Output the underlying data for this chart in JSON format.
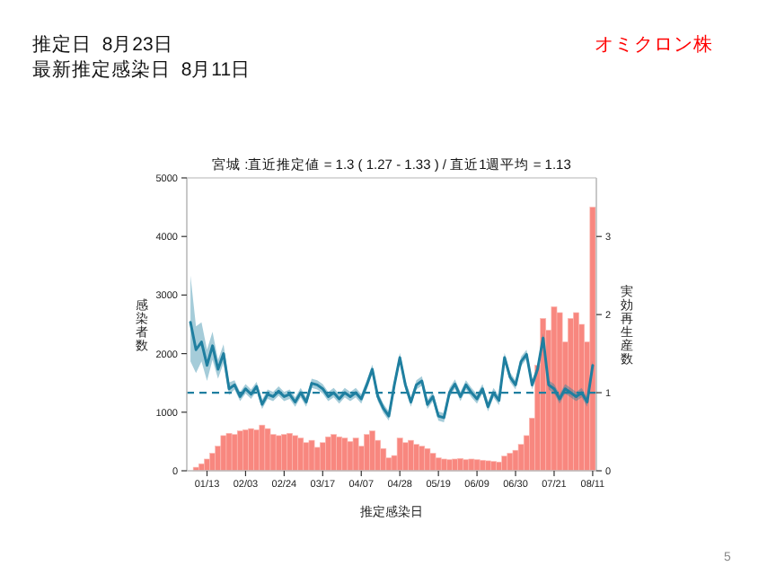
{
  "chart_data": {
    "type": "bar",
    "title": "宮城 :直近推定値 = 1.3 ( 1.27 - 1.33 ) / 直近1週平均 = 1.13",
    "xlabel": "推定感染日",
    "ylabel": "感染者数",
    "y2label": "実効再生産数",
    "annotations": [
      "推定日  8月23日",
      "最新推定感染日  8月11日",
      "オミクロン株",
      "5"
    ],
    "x": [
      "--01-04",
      "--01-07",
      "--01-10",
      "--01-13",
      "--01-16",
      "--01-19",
      "--01-22",
      "--01-25",
      "--01-28",
      "--01-31",
      "--02-03",
      "--02-06",
      "--02-09",
      "--02-12",
      "--02-15",
      "--02-18",
      "--02-21",
      "--02-24",
      "--02-27",
      "--03-02",
      "--03-05",
      "--03-08",
      "--03-11",
      "--03-14",
      "--03-17",
      "--03-20",
      "--03-23",
      "--03-26",
      "--03-29",
      "--04-01",
      "--04-04",
      "--04-07",
      "--04-10",
      "--04-13",
      "--04-16",
      "--04-19",
      "--04-22",
      "--04-25",
      "--04-28",
      "--05-01",
      "--05-04",
      "--05-07",
      "--05-10",
      "--05-13",
      "--05-16",
      "--05-19",
      "--05-22",
      "--05-25",
      "--05-28",
      "--05-31",
      "--06-03",
      "--06-06",
      "--06-09",
      "--06-12",
      "--06-15",
      "--06-18",
      "--06-21",
      "--06-24",
      "--06-27",
      "--06-30",
      "--07-03",
      "--07-06",
      "--07-09",
      "--07-12",
      "--07-15",
      "--07-18",
      "--07-21",
      "--07-24",
      "--07-27",
      "--07-30",
      "--08-02",
      "--08-05",
      "--08-08",
      "--08-11"
    ],
    "xlim": [
      "--01-02",
      "--08-13"
    ],
    "xticks": [
      {
        "value": "--01-13",
        "label": "01/13"
      },
      {
        "value": "--02-03",
        "label": "02/03"
      },
      {
        "value": "--02-24",
        "label": "02/24"
      },
      {
        "value": "--03-17",
        "label": "03/17"
      },
      {
        "value": "--04-07",
        "label": "04/07"
      },
      {
        "value": "--04-28",
        "label": "04/28"
      },
      {
        "value": "--05-19",
        "label": "05/19"
      },
      {
        "value": "--06-09",
        "label": "06/09"
      },
      {
        "value": "--06-30",
        "label": "06/30"
      },
      {
        "value": "--07-21",
        "label": "07/21"
      },
      {
        "value": "--08-11",
        "label": "08/11"
      }
    ],
    "ylim": [
      0,
      5000
    ],
    "yticks": [
      0,
      1000,
      2000,
      3000,
      4000,
      5000
    ],
    "y2lim": [
      0,
      3.75
    ],
    "y2ticks": [
      0,
      1,
      2,
      3
    ],
    "series": [
      {
        "color": "#f8877f",
        "values": [
          null,
          60,
          120,
          200,
          300,
          420,
          600,
          640,
          620,
          680,
          700,
          720,
          700,
          780,
          720,
          620,
          600,
          620,
          640,
          600,
          560,
          480,
          520,
          400,
          480,
          580,
          620,
          580,
          560,
          500,
          560,
          420,
          620,
          680,
          520,
          380,
          220,
          260,
          560,
          480,
          520,
          450,
          420,
          380,
          300,
          220,
          200,
          190,
          200,
          210,
          190,
          200,
          190,
          180,
          170,
          160,
          150,
          250,
          300,
          350,
          450,
          600,
          900,
          1800,
          2600,
          2400,
          2800,
          2700,
          2200,
          2600,
          2700,
          2500,
          2200,
          4500
        ]
      },
      {
        "type": "line",
        "axis": "y2",
        "color": "#1f7fa0",
        "values": [
          1.9,
          1.55,
          1.65,
          1.35,
          1.6,
          1.3,
          1.5,
          1.05,
          1.1,
          0.95,
          1.05,
          0.98,
          1.08,
          0.85,
          0.98,
          0.95,
          1.02,
          0.95,
          0.98,
          0.88,
          1.0,
          0.88,
          1.12,
          1.1,
          1.05,
          0.95,
          1.0,
          0.92,
          1.0,
          0.95,
          1.0,
          0.92,
          1.1,
          1.3,
          0.95,
          0.8,
          0.7,
          1.1,
          1.45,
          1.1,
          0.88,
          1.1,
          1.15,
          0.85,
          0.95,
          0.7,
          0.68,
          1.0,
          1.11,
          0.95,
          1.1,
          1.0,
          0.92,
          1.05,
          0.82,
          1.0,
          0.9,
          1.45,
          1.2,
          1.1,
          1.4,
          1.49,
          1.1,
          1.3,
          1.7,
          1.1,
          1.05,
          0.92,
          1.05,
          1.0,
          0.95,
          1.0,
          0.88,
          1.35
        ],
        "lower": [
          1.4,
          1.25,
          1.4,
          1.15,
          1.42,
          1.18,
          1.38,
          0.97,
          1.04,
          0.89,
          0.99,
          0.92,
          1.02,
          0.79,
          0.92,
          0.89,
          0.96,
          0.89,
          0.92,
          0.82,
          0.94,
          0.82,
          1.06,
          1.04,
          0.99,
          0.89,
          0.94,
          0.86,
          0.94,
          0.89,
          0.94,
          0.86,
          1.04,
          1.24,
          0.89,
          0.74,
          0.64,
          1.04,
          1.39,
          1.04,
          0.82,
          1.04,
          1.09,
          0.79,
          0.89,
          0.64,
          0.62,
          0.94,
          1.05,
          0.89,
          1.04,
          0.94,
          0.86,
          0.99,
          0.76,
          0.94,
          0.84,
          1.39,
          1.14,
          1.04,
          1.34,
          1.43,
          1.04,
          1.24,
          1.64,
          1.04,
          0.99,
          0.86,
          0.99,
          0.94,
          0.89,
          0.94,
          0.82,
          1.29
        ],
        "upper": [
          2.5,
          1.85,
          1.9,
          1.55,
          1.78,
          1.42,
          1.62,
          1.13,
          1.16,
          1.01,
          1.11,
          1.04,
          1.14,
          0.91,
          1.04,
          1.01,
          1.08,
          1.01,
          1.04,
          0.94,
          1.06,
          0.94,
          1.18,
          1.16,
          1.11,
          1.01,
          1.06,
          0.98,
          1.06,
          1.01,
          1.06,
          0.98,
          1.16,
          1.36,
          1.01,
          0.86,
          0.76,
          1.16,
          1.51,
          1.16,
          0.94,
          1.16,
          1.21,
          0.91,
          1.01,
          0.76,
          0.74,
          1.06,
          1.17,
          1.01,
          1.16,
          1.06,
          0.98,
          1.11,
          0.88,
          1.06,
          0.96,
          1.51,
          1.26,
          1.16,
          1.46,
          1.55,
          1.16,
          1.36,
          1.76,
          1.16,
          1.11,
          0.98,
          1.11,
          1.06,
          1.01,
          1.06,
          0.94,
          1.41
        ]
      }
    ],
    "ref_lines": [
      {
        "axis": "y2",
        "value": 1,
        "color": "#1f7fa0",
        "line_style": "dashed"
      }
    ]
  }
}
